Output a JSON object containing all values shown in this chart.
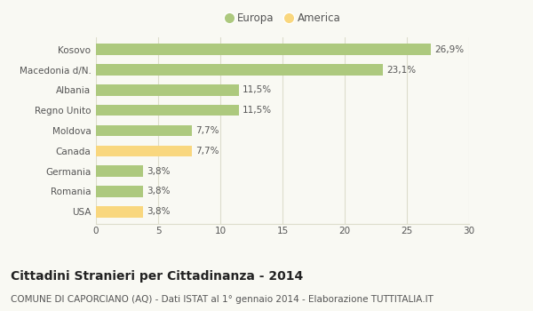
{
  "categories": [
    "Kosovo",
    "Macedonia d/N.",
    "Albania",
    "Regno Unito",
    "Moldova",
    "Canada",
    "Germania",
    "Romania",
    "USA"
  ],
  "values": [
    26.9,
    23.1,
    11.5,
    11.5,
    7.7,
    7.7,
    3.8,
    3.8,
    3.8
  ],
  "labels": [
    "26,9%",
    "23,1%",
    "11,5%",
    "11,5%",
    "7,7%",
    "7,7%",
    "3,8%",
    "3,8%",
    "3,8%"
  ],
  "colors": [
    "#adc97e",
    "#adc97e",
    "#adc97e",
    "#adc97e",
    "#adc97e",
    "#f9d77e",
    "#adc97e",
    "#adc97e",
    "#f9d77e"
  ],
  "europa_color": "#adc97e",
  "america_color": "#f9d77e",
  "xlim": [
    0,
    30
  ],
  "xticks": [
    0,
    5,
    10,
    15,
    20,
    25,
    30
  ],
  "title": "Cittadini Stranieri per Cittadinanza - 2014",
  "subtitle": "COMUNE DI CAPORCIANO (AQ) - Dati ISTAT al 1° gennaio 2014 - Elaborazione TUTTITALIA.IT",
  "bg_color": "#f9f9f3",
  "bar_height": 0.55,
  "title_fontsize": 10,
  "subtitle_fontsize": 7.5,
  "legend_fontsize": 8.5,
  "tick_fontsize": 7.5,
  "label_fontsize": 7.5,
  "grid_color": "#ddddcc",
  "text_color": "#555555",
  "title_color": "#222222"
}
